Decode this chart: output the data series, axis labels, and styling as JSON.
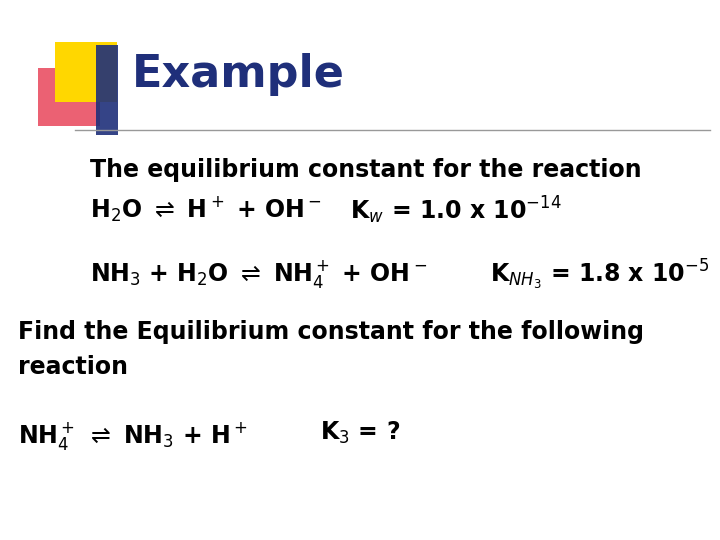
{
  "title": "Example",
  "title_color": "#1F2F7A",
  "title_fontsize": 32,
  "background_color": "#FFFFFF",
  "body_fontsize": 17,
  "body_fontsize_sm": 17,
  "text_color": "#000000",
  "square_yellow": "#FFD700",
  "square_red": "#E8455A",
  "square_blue": "#1F2F7A",
  "decorator_line_color": "#999999",
  "line1": "The equilibrium constant for the reaction",
  "line2_left": "H$_2$O $\\rightleftharpoons$ H$^+$ + OH$^-$",
  "line2_right": "K$_w$ = 1.0 x 10$^{-14}$",
  "line3_left": "NH$_3$ + H$_2$O $\\rightleftharpoons$ NH$_4^+$ + OH$^-$",
  "line3_right": "K$_{NH_3}$ = 1.8 x 10$^{-5}$",
  "line4a": "Find the Equilibrium constant for the following",
  "line4b": "reaction",
  "line5_left": "NH$_4^+$ $\\rightleftharpoons$ NH$_3$ + H$^+$",
  "line5_right": "K$_3$ = ?"
}
